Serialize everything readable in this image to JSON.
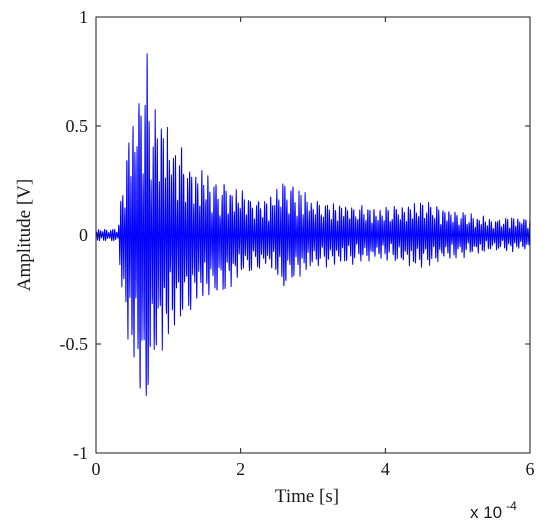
{
  "chart_data": {
    "type": "line",
    "title": "",
    "xlabel": "Time [s]",
    "ylabel": "Amplitude [V]",
    "x_multiplier": {
      "base": "x 10",
      "exponent": "-4"
    },
    "xlim": [
      0,
      6
    ],
    "ylim": [
      -1,
      1
    ],
    "x_ticks": [
      0,
      2,
      4,
      6
    ],
    "x_tick_labels": [
      "0",
      "2",
      "4",
      "6"
    ],
    "y_ticks": [
      -1,
      -0.5,
      0,
      0.5,
      1
    ],
    "y_tick_labels": [
      "-1",
      "-0.5",
      "0",
      "0.5",
      "1"
    ],
    "grid": false,
    "box": true,
    "line_color": "#0000ff",
    "series": [
      {
        "envelope": {
          "x": [
            0.0,
            0.3,
            0.35,
            0.4,
            0.45,
            0.5,
            0.55,
            0.6,
            0.65,
            0.7,
            0.75,
            0.8,
            0.9,
            1.0,
            1.2,
            1.4,
            1.6,
            1.8,
            2.0,
            2.2,
            2.4,
            2.6,
            2.8,
            3.0,
            3.2,
            3.5,
            4.0,
            4.5,
            5.0,
            5.5,
            6.0
          ],
          "upper": [
            0.03,
            0.03,
            0.2,
            0.3,
            0.5,
            0.55,
            0.65,
            0.78,
            0.82,
            0.92,
            0.55,
            0.62,
            0.58,
            0.5,
            0.42,
            0.35,
            0.28,
            0.26,
            0.22,
            0.2,
            0.18,
            0.3,
            0.22,
            0.18,
            0.16,
            0.16,
            0.14,
            0.17,
            0.12,
            0.08,
            0.1
          ],
          "lower": [
            -0.03,
            -0.03,
            -0.25,
            -0.4,
            -0.55,
            -0.62,
            -0.72,
            -0.8,
            -0.85,
            -0.92,
            -0.78,
            -0.65,
            -0.55,
            -0.5,
            -0.42,
            -0.32,
            -0.3,
            -0.28,
            -0.2,
            -0.18,
            -0.16,
            -0.28,
            -0.2,
            -0.17,
            -0.15,
            -0.14,
            -0.12,
            -0.16,
            -0.11,
            -0.08,
            -0.08
          ]
        }
      }
    ]
  }
}
